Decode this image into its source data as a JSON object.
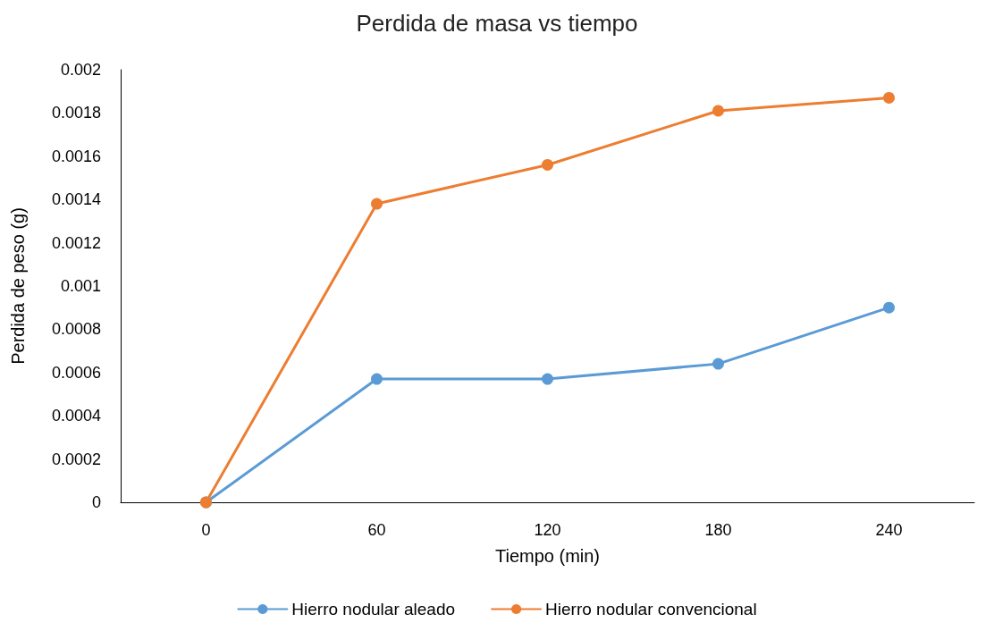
{
  "chart_data": {
    "type": "line",
    "title": "Perdida de masa vs tiempo",
    "xlabel": "Tiempo (min)",
    "ylabel": "Perdida de peso (g)",
    "categories": [
      "0",
      "60",
      "120",
      "180",
      "240"
    ],
    "series": [
      {
        "name": "Hierro nodular aleado",
        "color": "#5b9bd5",
        "values": [
          0,
          0.00057,
          0.00057,
          0.00064,
          0.0009
        ]
      },
      {
        "name": "Hierro nodular convencional",
        "color": "#ed7d31",
        "values": [
          0,
          0.00138,
          0.00156,
          0.00181,
          0.00187
        ]
      }
    ],
    "ylim": [
      0,
      0.002
    ],
    "yticks": [
      0,
      0.0002,
      0.0004,
      0.0006,
      0.0008,
      0.001,
      0.0012,
      0.0014,
      0.0016,
      0.0018,
      0.002
    ],
    "grid": false,
    "legend": "bottom",
    "marker": "circle",
    "line_style": "solid"
  }
}
